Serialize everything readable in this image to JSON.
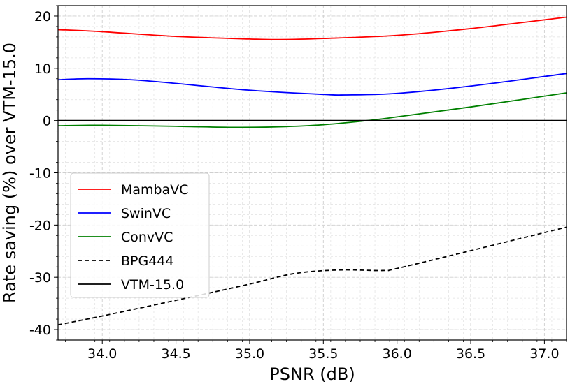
{
  "chart_data": {
    "type": "line",
    "title": "",
    "xlabel": "PSNR (dB)",
    "ylabel": "Rate saving (%) over VTM-15.0",
    "xlim": [
      33.7,
      37.15
    ],
    "ylim": [
      -42,
      22
    ],
    "xticks": [
      34.0,
      34.5,
      35.0,
      35.5,
      36.0,
      36.5,
      37.0
    ],
    "xtick_labels": [
      "34.0",
      "34.5",
      "35.0",
      "35.5",
      "36.0",
      "36.5",
      "37.0"
    ],
    "yticks": [
      -40,
      -30,
      -20,
      -10,
      0,
      10,
      20
    ],
    "ytick_labels": [
      "-40",
      "-30",
      "-20",
      "-10",
      "0",
      "10",
      "20"
    ],
    "grid": true,
    "legend_position": "lower-left",
    "series": [
      {
        "name": "MambaVC",
        "color": "#ff0000",
        "dash": "solid",
        "x": [
          33.7,
          34.0,
          34.5,
          35.0,
          35.2,
          35.5,
          36.0,
          36.5,
          37.15
        ],
        "y": [
          17.4,
          17.0,
          16.1,
          15.6,
          15.5,
          15.7,
          16.3,
          17.6,
          19.8
        ]
      },
      {
        "name": "SwinVC",
        "color": "#0000ff",
        "dash": "solid",
        "x": [
          33.7,
          33.9,
          34.2,
          34.5,
          35.0,
          35.5,
          35.65,
          36.0,
          36.5,
          37.15
        ],
        "y": [
          7.8,
          8.0,
          7.8,
          7.1,
          5.8,
          5.0,
          4.9,
          5.2,
          6.6,
          9.0
        ]
      },
      {
        "name": "ConvVC",
        "color": "#008000",
        "dash": "solid",
        "x": [
          33.7,
          34.0,
          34.5,
          34.9,
          35.2,
          35.5,
          35.8,
          36.0,
          36.5,
          37.15
        ],
        "y": [
          -1.0,
          -0.9,
          -1.1,
          -1.3,
          -1.2,
          -0.8,
          0.0,
          0.7,
          2.6,
          5.3
        ]
      },
      {
        "name": "BPG444",
        "color": "#000000",
        "dash": "dashed",
        "x": [
          33.7,
          34.0,
          34.5,
          35.0,
          35.3,
          35.6,
          35.9,
          36.0,
          36.5,
          37.15
        ],
        "y": [
          -39.1,
          -37.4,
          -34.4,
          -31.3,
          -29.3,
          -28.6,
          -28.7,
          -28.3,
          -24.9,
          -20.4
        ]
      },
      {
        "name": "VTM-15.0",
        "color": "#000000",
        "dash": "solid",
        "x": [
          33.7,
          37.15
        ],
        "y": [
          0.0,
          0.0
        ]
      }
    ]
  }
}
